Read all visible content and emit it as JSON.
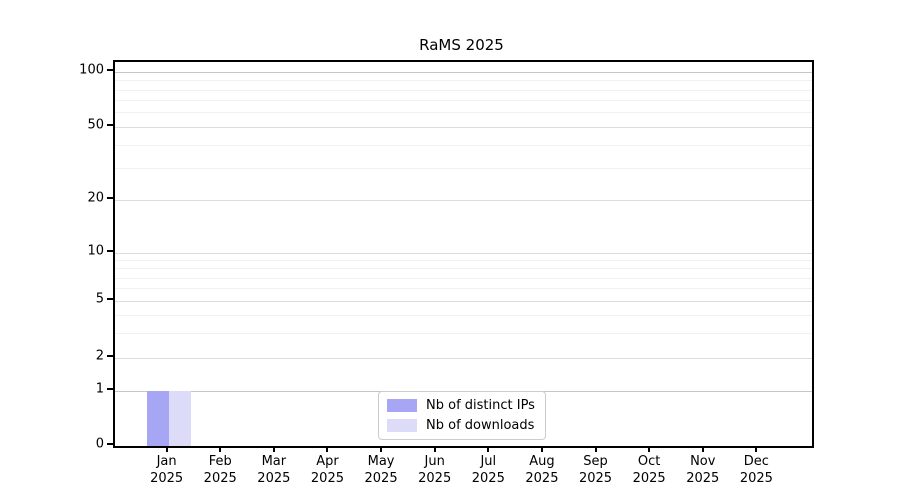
{
  "chart_data": {
    "type": "bar",
    "title": "RaMS 2025",
    "categories": [
      "Jan",
      "Feb",
      "Mar",
      "Apr",
      "May",
      "Jun",
      "Jul",
      "Aug",
      "Sep",
      "Oct",
      "Nov",
      "Dec"
    ],
    "category_year": "2025",
    "series": [
      {
        "name": "Nb of distinct IPs",
        "color": "#a6a6f5",
        "values": [
          1,
          0,
          0,
          0,
          0,
          0,
          0,
          0,
          0,
          0,
          0,
          0
        ]
      },
      {
        "name": "Nb of downloads",
        "color": "#dcdcf8",
        "values": [
          1,
          0,
          0,
          0,
          0,
          0,
          0,
          0,
          0,
          0,
          0,
          0
        ]
      }
    ],
    "xlabel": "",
    "ylabel": "",
    "yscale": "symlog",
    "yticks": [
      0,
      1,
      2,
      5,
      10,
      20,
      50,
      100
    ],
    "minor_yticks": [
      3,
      4,
      6,
      7,
      8,
      9,
      30,
      40,
      60,
      70,
      80,
      90
    ],
    "ylim": [
      0,
      115
    ],
    "grid": "on",
    "legend_position": "lower center",
    "frame_color": "#000000",
    "gridline_color": "#dcdcdc"
  }
}
